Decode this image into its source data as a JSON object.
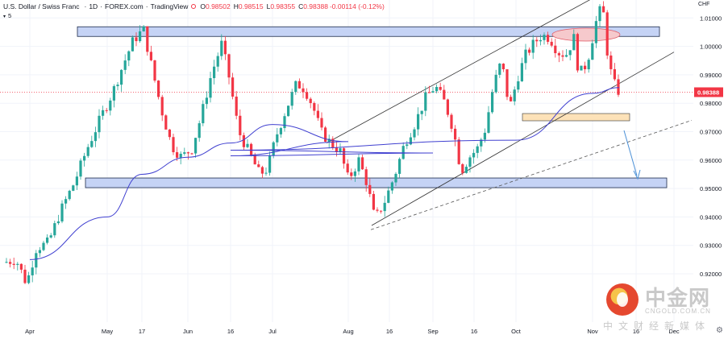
{
  "legend": {
    "symbol": "U.S. Dollar / Swiss Franc",
    "interval": "1D",
    "source": "FOREX.com",
    "platform": "TradingView",
    "open_label": "O",
    "open": "0.98502",
    "high_label": "H",
    "high": "0.98515",
    "low_label": "L",
    "low": "0.98355",
    "close_label": "C",
    "close": "0.98388",
    "change": "-0.00114 (-0.12%)",
    "indicator_collapsed": "5"
  },
  "currency": "CHF",
  "colors": {
    "up": "#26a69a",
    "down": "#f23645",
    "ma": "#4040d0",
    "zone_fill": "#c5d3f5",
    "zone_border": "#1c2a4a",
    "price_tag": "#f23645",
    "small_zone": "#fde2b8",
    "ellipse": "#f6c9cc",
    "arrow": "#4a8fd6"
  },
  "chart_data": {
    "type": "candlestick",
    "title": "U.S. Dollar / Swiss Franc · 1D · FOREX.com",
    "y_axis": {
      "ticks": [
        "1.02000",
        "1.01000",
        "1.00000",
        "0.99000",
        "0.98000",
        "0.97000",
        "0.96000",
        "0.95000",
        "0.94000",
        "0.93000",
        "0.92000"
      ],
      "range": [
        0.9135,
        1.0265
      ]
    },
    "x_axis": {
      "ticks": [
        "Apr",
        "May",
        "17",
        "Jun",
        "16",
        "Jul",
        "Aug",
        "16",
        "Sep",
        "16",
        "Oct",
        "Nov",
        "16",
        "Dec"
      ]
    },
    "last_price": {
      "value": 0.98388,
      "label": "0.98388"
    },
    "moving_average": {
      "period": 5,
      "points": [
        [
          "Apr",
          0.925
        ],
        [
          "May",
          0.94
        ],
        [
          "17",
          0.955
        ],
        [
          "Jun",
          0.961
        ],
        [
          "16",
          0.966
        ],
        [
          "Jul",
          0.9725
        ],
        [
          "Aug",
          0.9665
        ],
        [
          "16",
          0.9615
        ],
        [
          "Sep",
          0.9625
        ],
        [
          "16",
          0.9635
        ],
        [
          "Oct",
          0.967
        ],
        [
          "Nov",
          0.9835
        ]
      ]
    },
    "candles": [],
    "zones": [
      {
        "name": "resistance-zone",
        "from": 1.0035,
        "to": 1.0069,
        "start": "Apr",
        "end": "Nov"
      },
      {
        "name": "support-zone",
        "from": 0.9503,
        "to": 0.9537,
        "start": "May",
        "end": "Dec"
      }
    ],
    "channel": {
      "upper": {
        "from": [
          "Aug",
          0.966
        ],
        "to": [
          "Nov",
          1.022
        ]
      },
      "lower": {
        "from": [
          "Aug",
          0.937
        ],
        "to": [
          "Dec",
          0.998
        ]
      },
      "dashed": {
        "from": [
          "Aug",
          0.9355
        ],
        "to": [
          "Dec",
          0.974
        ]
      }
    }
  },
  "watermark": {
    "brand": "中金网",
    "url": "CNGOLD.COM.CN",
    "tagline": "中文财经新媒体"
  }
}
